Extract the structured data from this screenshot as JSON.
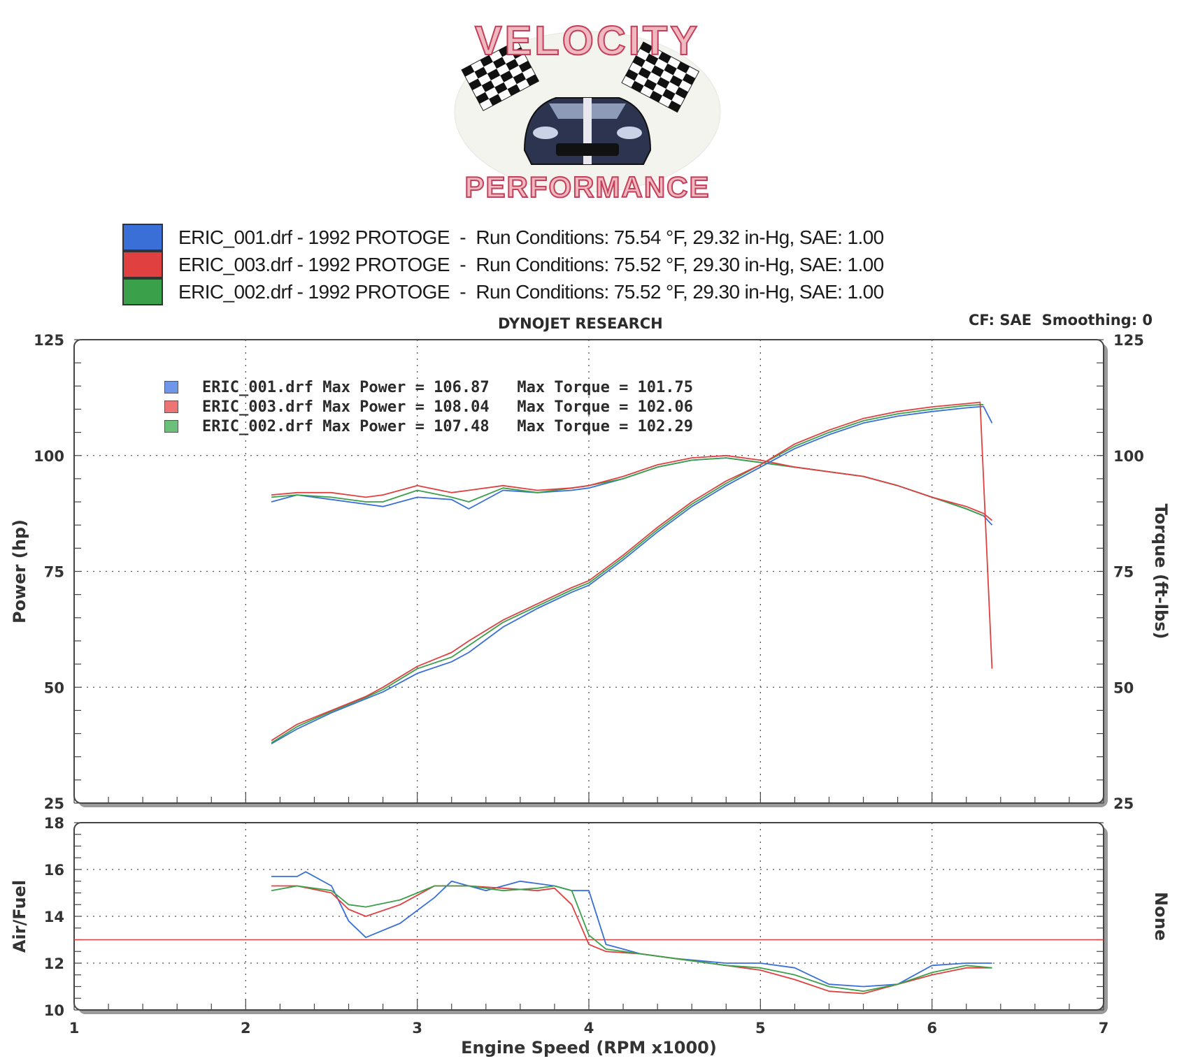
{
  "logo": {
    "top_text": "VELOCITY",
    "bottom_text": "PERFORMANCE"
  },
  "legend_runs": [
    {
      "file": "ERIC_001.drf",
      "vehicle": "1992 PROTOGE",
      "conditions": "Run Conditions: 75.54 °F, 29.32 in-Hg, SAE: 1.00",
      "color": "#3a6fd8"
    },
    {
      "file": "ERIC_003.drf",
      "vehicle": "1992 PROTOGE",
      "conditions": "Run Conditions: 75.52 °F, 29.30 in-Hg, SAE: 1.00",
      "color": "#e0403f"
    },
    {
      "file": "ERIC_002.drf",
      "vehicle": "1992 PROTOGE",
      "conditions": "Run Conditions: 75.52 °F, 29.30 in-Hg, SAE: 1.00",
      "color": "#3aa04a"
    }
  ],
  "header": {
    "title": "DYNOJET RESEARCH",
    "cf": "CF: SAE  Smoothing: 0"
  },
  "stats": [
    {
      "file": "ERIC_001.drf",
      "max_power": "Max Power = 106.87",
      "max_torque": "Max Torque = 101.75",
      "color": "#3a6fd8"
    },
    {
      "file": "ERIC_003.drf",
      "max_power": "Max Power = 108.04",
      "max_torque": "Max Torque = 102.06",
      "color": "#e0403f"
    },
    {
      "file": "ERIC_002.drf",
      "max_power": "Max Power = 107.48",
      "max_torque": "Max Torque = 102.29",
      "color": "#3aa04a"
    }
  ],
  "chart_data": [
    {
      "type": "line",
      "ylabel": "Power (hp)",
      "y2label": "Torque (ft-lbs)",
      "xlim": [
        1,
        7
      ],
      "ylim": [
        25,
        125
      ],
      "y2lim": [
        25,
        125
      ],
      "yticks": [
        25,
        50,
        75,
        100,
        125
      ],
      "y2ticks": [
        25,
        50,
        75,
        100,
        125
      ],
      "grid": true,
      "series": [
        {
          "name": "ERIC_001.drf",
          "color": "#3a6fd8",
          "kind": "power",
          "x": [
            2.15,
            2.3,
            2.5,
            2.7,
            2.8,
            3.0,
            3.2,
            3.3,
            3.5,
            3.7,
            3.9,
            4.0,
            4.2,
            4.4,
            4.6,
            4.8,
            5.0,
            5.2,
            5.4,
            5.6,
            5.8,
            6.0,
            6.2,
            6.3,
            6.35
          ],
          "y": [
            37.8,
            41,
            44.5,
            47.5,
            49,
            53,
            55.5,
            57.5,
            63,
            67,
            70.5,
            72,
            77.5,
            83.5,
            89,
            93.5,
            97.5,
            101.5,
            104.5,
            107,
            108.5,
            109.5,
            110.3,
            110.6,
            107
          ]
        },
        {
          "name": "ERIC_003.drf",
          "color": "#e0403f",
          "kind": "power",
          "x": [
            2.15,
            2.3,
            2.5,
            2.7,
            2.8,
            3.0,
            3.2,
            3.3,
            3.5,
            3.7,
            3.9,
            4.0,
            4.2,
            4.4,
            4.6,
            4.8,
            5.0,
            5.2,
            5.4,
            5.6,
            5.8,
            6.0,
            6.2,
            6.28,
            6.35
          ],
          "y": [
            38.5,
            42,
            45,
            48,
            50,
            54.5,
            57.5,
            60,
            64.5,
            68,
            71.5,
            73,
            78.5,
            84.5,
            90,
            94.5,
            98,
            102.5,
            105.5,
            108,
            109.5,
            110.5,
            111.2,
            111.5,
            54
          ]
        },
        {
          "name": "ERIC_002.drf",
          "color": "#3aa04a",
          "kind": "power",
          "x": [
            2.15,
            2.3,
            2.5,
            2.7,
            2.8,
            3.0,
            3.2,
            3.3,
            3.5,
            3.7,
            3.9,
            4.0,
            4.2,
            4.4,
            4.6,
            4.8,
            5.0,
            5.2,
            5.4,
            5.6,
            5.8,
            6.0,
            6.2,
            6.3
          ],
          "y": [
            38,
            41.5,
            44.8,
            47.8,
            49.5,
            54,
            56.5,
            59,
            64,
            67.5,
            71,
            72.5,
            78,
            84,
            89.5,
            94,
            98,
            102,
            105,
            107.5,
            109,
            110,
            110.8,
            111
          ]
        },
        {
          "name": "ERIC_001.drf",
          "color": "#3a6fd8",
          "kind": "torque",
          "x": [
            2.15,
            2.3,
            2.5,
            2.7,
            2.8,
            3.0,
            3.2,
            3.3,
            3.5,
            3.7,
            3.9,
            4.0,
            4.2,
            4.4,
            4.6,
            4.8,
            5.0,
            5.2,
            5.4,
            5.6,
            5.8,
            6.0,
            6.2,
            6.3,
            6.35
          ],
          "y": [
            90,
            91.5,
            90.5,
            89.5,
            89,
            91,
            90.5,
            88.5,
            92.5,
            92,
            92.5,
            93,
            95,
            97.5,
            99,
            99.5,
            98.5,
            97.5,
            96.5,
            95.5,
            93.5,
            91,
            88.5,
            87,
            85
          ]
        },
        {
          "name": "ERIC_003.drf",
          "color": "#e0403f",
          "kind": "torque",
          "x": [
            2.15,
            2.3,
            2.5,
            2.7,
            2.8,
            3.0,
            3.2,
            3.3,
            3.5,
            3.7,
            3.9,
            4.0,
            4.2,
            4.4,
            4.6,
            4.8,
            5.0,
            5.2,
            5.4,
            5.6,
            5.8,
            6.0,
            6.2,
            6.3,
            6.35
          ],
          "y": [
            91.5,
            92,
            92,
            91,
            91.5,
            93.5,
            92,
            92.5,
            93.5,
            92.5,
            93,
            93.5,
            95.5,
            98,
            99.5,
            100,
            99,
            97.5,
            96.5,
            95.5,
            93.5,
            91,
            89,
            87.5,
            86
          ]
        },
        {
          "name": "ERIC_002.drf",
          "color": "#3aa04a",
          "kind": "torque",
          "x": [
            2.15,
            2.3,
            2.5,
            2.7,
            2.8,
            3.0,
            3.2,
            3.3,
            3.5,
            3.7,
            3.9,
            4.0,
            4.2,
            4.4,
            4.6,
            4.8,
            5.0,
            5.2,
            5.4,
            5.6,
            5.8,
            6.0,
            6.2,
            6.3
          ],
          "y": [
            91,
            91.5,
            91,
            90,
            90,
            92.5,
            91,
            90,
            93,
            92,
            93,
            93.5,
            95,
            97.5,
            99,
            99.5,
            98.5,
            97.5,
            96.5,
            95.5,
            93.5,
            91,
            88.5,
            87
          ]
        }
      ]
    },
    {
      "type": "line",
      "ylabel": "Air/Fuel",
      "y2label": "None",
      "xlabel": "Engine Speed (RPM x1000)",
      "xlim": [
        1,
        7
      ],
      "ylim": [
        10,
        18
      ],
      "xticks": [
        1,
        2,
        3,
        4,
        5,
        6,
        7
      ],
      "yticks": [
        10,
        12,
        14,
        16,
        18
      ],
      "grid": true,
      "reference_line": {
        "y": 13.0,
        "color": "#e0403f"
      },
      "series": [
        {
          "name": "ERIC_001.drf",
          "color": "#3a6fd8",
          "x": [
            2.15,
            2.3,
            2.35,
            2.5,
            2.6,
            2.7,
            2.9,
            3.1,
            3.2,
            3.4,
            3.6,
            3.8,
            3.9,
            4.0,
            4.1,
            4.3,
            4.5,
            4.8,
            5.0,
            5.2,
            5.4,
            5.6,
            5.8,
            6.0,
            6.2,
            6.35
          ],
          "y": [
            15.7,
            15.7,
            15.9,
            15.3,
            13.8,
            13.1,
            13.7,
            14.8,
            15.5,
            15.1,
            15.5,
            15.3,
            15.1,
            15.1,
            12.8,
            12.4,
            12.2,
            12.0,
            12.0,
            11.8,
            11.1,
            11.0,
            11.1,
            11.9,
            12.0,
            12.0
          ]
        },
        {
          "name": "ERIC_003.drf",
          "color": "#e0403f",
          "x": [
            2.15,
            2.3,
            2.5,
            2.6,
            2.7,
            2.9,
            3.1,
            3.3,
            3.5,
            3.7,
            3.8,
            3.9,
            4.0,
            4.1,
            4.3,
            4.5,
            4.8,
            5.0,
            5.2,
            5.4,
            5.6,
            5.8,
            6.0,
            6.2,
            6.35
          ],
          "y": [
            15.3,
            15.3,
            15.0,
            14.3,
            14.0,
            14.5,
            15.3,
            15.3,
            15.2,
            15.1,
            15.2,
            14.5,
            12.8,
            12.5,
            12.4,
            12.2,
            11.9,
            11.7,
            11.3,
            10.8,
            10.7,
            11.1,
            11.5,
            11.8,
            11.8
          ]
        },
        {
          "name": "ERIC_002.drf",
          "color": "#3aa04a",
          "x": [
            2.15,
            2.3,
            2.5,
            2.6,
            2.7,
            2.9,
            3.1,
            3.3,
            3.5,
            3.7,
            3.8,
            3.9,
            4.0,
            4.1,
            4.3,
            4.5,
            4.8,
            5.0,
            5.2,
            5.4,
            5.6,
            5.8,
            6.0,
            6.2,
            6.35
          ],
          "y": [
            15.1,
            15.3,
            15.1,
            14.5,
            14.4,
            14.7,
            15.3,
            15.3,
            15.1,
            15.2,
            15.3,
            15.1,
            13.2,
            12.6,
            12.4,
            12.2,
            11.9,
            11.8,
            11.5,
            11.0,
            10.8,
            11.1,
            11.6,
            11.9,
            11.8
          ]
        }
      ]
    }
  ]
}
